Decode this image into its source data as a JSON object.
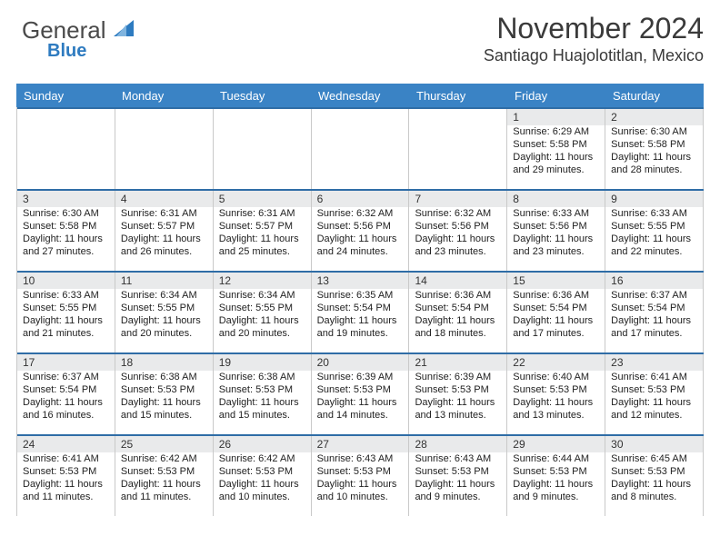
{
  "logo": {
    "text1": "General",
    "text2": "Blue"
  },
  "title": "November 2024",
  "location": "Santiago Huajolotitlan, Mexico",
  "colors": {
    "accent": "#3a83c5",
    "daynum_bg": "#e9eaeb",
    "sep": "#2f6da6",
    "grid_border": "#c9c9c9"
  },
  "dow_labels": [
    "Sunday",
    "Monday",
    "Tuesday",
    "Wednesday",
    "Thursday",
    "Friday",
    "Saturday"
  ],
  "weeks": [
    [
      {
        "n": "",
        "sunrise": "",
        "sunset": "",
        "daylight": ""
      },
      {
        "n": "",
        "sunrise": "",
        "sunset": "",
        "daylight": ""
      },
      {
        "n": "",
        "sunrise": "",
        "sunset": "",
        "daylight": ""
      },
      {
        "n": "",
        "sunrise": "",
        "sunset": "",
        "daylight": ""
      },
      {
        "n": "",
        "sunrise": "",
        "sunset": "",
        "daylight": ""
      },
      {
        "n": "1",
        "sunrise": "Sunrise: 6:29 AM",
        "sunset": "Sunset: 5:58 PM",
        "daylight": "Daylight: 11 hours and 29 minutes."
      },
      {
        "n": "2",
        "sunrise": "Sunrise: 6:30 AM",
        "sunset": "Sunset: 5:58 PM",
        "daylight": "Daylight: 11 hours and 28 minutes."
      }
    ],
    [
      {
        "n": "3",
        "sunrise": "Sunrise: 6:30 AM",
        "sunset": "Sunset: 5:58 PM",
        "daylight": "Daylight: 11 hours and 27 minutes."
      },
      {
        "n": "4",
        "sunrise": "Sunrise: 6:31 AM",
        "sunset": "Sunset: 5:57 PM",
        "daylight": "Daylight: 11 hours and 26 minutes."
      },
      {
        "n": "5",
        "sunrise": "Sunrise: 6:31 AM",
        "sunset": "Sunset: 5:57 PM",
        "daylight": "Daylight: 11 hours and 25 minutes."
      },
      {
        "n": "6",
        "sunrise": "Sunrise: 6:32 AM",
        "sunset": "Sunset: 5:56 PM",
        "daylight": "Daylight: 11 hours and 24 minutes."
      },
      {
        "n": "7",
        "sunrise": "Sunrise: 6:32 AM",
        "sunset": "Sunset: 5:56 PM",
        "daylight": "Daylight: 11 hours and 23 minutes."
      },
      {
        "n": "8",
        "sunrise": "Sunrise: 6:33 AM",
        "sunset": "Sunset: 5:56 PM",
        "daylight": "Daylight: 11 hours and 23 minutes."
      },
      {
        "n": "9",
        "sunrise": "Sunrise: 6:33 AM",
        "sunset": "Sunset: 5:55 PM",
        "daylight": "Daylight: 11 hours and 22 minutes."
      }
    ],
    [
      {
        "n": "10",
        "sunrise": "Sunrise: 6:33 AM",
        "sunset": "Sunset: 5:55 PM",
        "daylight": "Daylight: 11 hours and 21 minutes."
      },
      {
        "n": "11",
        "sunrise": "Sunrise: 6:34 AM",
        "sunset": "Sunset: 5:55 PM",
        "daylight": "Daylight: 11 hours and 20 minutes."
      },
      {
        "n": "12",
        "sunrise": "Sunrise: 6:34 AM",
        "sunset": "Sunset: 5:55 PM",
        "daylight": "Daylight: 11 hours and 20 minutes."
      },
      {
        "n": "13",
        "sunrise": "Sunrise: 6:35 AM",
        "sunset": "Sunset: 5:54 PM",
        "daylight": "Daylight: 11 hours and 19 minutes."
      },
      {
        "n": "14",
        "sunrise": "Sunrise: 6:36 AM",
        "sunset": "Sunset: 5:54 PM",
        "daylight": "Daylight: 11 hours and 18 minutes."
      },
      {
        "n": "15",
        "sunrise": "Sunrise: 6:36 AM",
        "sunset": "Sunset: 5:54 PM",
        "daylight": "Daylight: 11 hours and 17 minutes."
      },
      {
        "n": "16",
        "sunrise": "Sunrise: 6:37 AM",
        "sunset": "Sunset: 5:54 PM",
        "daylight": "Daylight: 11 hours and 17 minutes."
      }
    ],
    [
      {
        "n": "17",
        "sunrise": "Sunrise: 6:37 AM",
        "sunset": "Sunset: 5:54 PM",
        "daylight": "Daylight: 11 hours and 16 minutes."
      },
      {
        "n": "18",
        "sunrise": "Sunrise: 6:38 AM",
        "sunset": "Sunset: 5:53 PM",
        "daylight": "Daylight: 11 hours and 15 minutes."
      },
      {
        "n": "19",
        "sunrise": "Sunrise: 6:38 AM",
        "sunset": "Sunset: 5:53 PM",
        "daylight": "Daylight: 11 hours and 15 minutes."
      },
      {
        "n": "20",
        "sunrise": "Sunrise: 6:39 AM",
        "sunset": "Sunset: 5:53 PM",
        "daylight": "Daylight: 11 hours and 14 minutes."
      },
      {
        "n": "21",
        "sunrise": "Sunrise: 6:39 AM",
        "sunset": "Sunset: 5:53 PM",
        "daylight": "Daylight: 11 hours and 13 minutes."
      },
      {
        "n": "22",
        "sunrise": "Sunrise: 6:40 AM",
        "sunset": "Sunset: 5:53 PM",
        "daylight": "Daylight: 11 hours and 13 minutes."
      },
      {
        "n": "23",
        "sunrise": "Sunrise: 6:41 AM",
        "sunset": "Sunset: 5:53 PM",
        "daylight": "Daylight: 11 hours and 12 minutes."
      }
    ],
    [
      {
        "n": "24",
        "sunrise": "Sunrise: 6:41 AM",
        "sunset": "Sunset: 5:53 PM",
        "daylight": "Daylight: 11 hours and 11 minutes."
      },
      {
        "n": "25",
        "sunrise": "Sunrise: 6:42 AM",
        "sunset": "Sunset: 5:53 PM",
        "daylight": "Daylight: 11 hours and 11 minutes."
      },
      {
        "n": "26",
        "sunrise": "Sunrise: 6:42 AM",
        "sunset": "Sunset: 5:53 PM",
        "daylight": "Daylight: 11 hours and 10 minutes."
      },
      {
        "n": "27",
        "sunrise": "Sunrise: 6:43 AM",
        "sunset": "Sunset: 5:53 PM",
        "daylight": "Daylight: 11 hours and 10 minutes."
      },
      {
        "n": "28",
        "sunrise": "Sunrise: 6:43 AM",
        "sunset": "Sunset: 5:53 PM",
        "daylight": "Daylight: 11 hours and 9 minutes."
      },
      {
        "n": "29",
        "sunrise": "Sunrise: 6:44 AM",
        "sunset": "Sunset: 5:53 PM",
        "daylight": "Daylight: 11 hours and 9 minutes."
      },
      {
        "n": "30",
        "sunrise": "Sunrise: 6:45 AM",
        "sunset": "Sunset: 5:53 PM",
        "daylight": "Daylight: 11 hours and 8 minutes."
      }
    ]
  ]
}
